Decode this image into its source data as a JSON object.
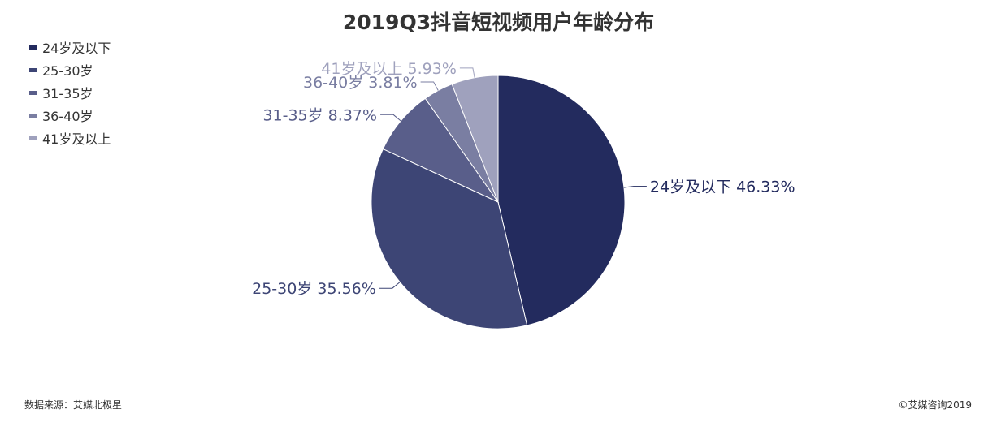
{
  "title": "2019Q3抖音短视频用户年龄分布",
  "source": "数据来源：艾媒北极星",
  "copyright": "©艾媒咨询2019",
  "chart_data": {
    "type": "pie",
    "title": "2019Q3抖音短视频用户年龄分布",
    "legend_position": "top-left",
    "slices": [
      {
        "name": "24岁及以下",
        "value": 46.33,
        "label": "24岁及以下 46.33%",
        "color": "#232b5e"
      },
      {
        "name": "25-30岁",
        "value": 35.56,
        "label": "25-30岁 35.56%",
        "color": "#3d4575"
      },
      {
        "name": "31-35岁",
        "value": 8.37,
        "label": "31-35岁 8.37%",
        "color": "#595e8a"
      },
      {
        "name": "36-40岁",
        "value": 3.81,
        "label": "36-40岁 3.81%",
        "color": "#7a7ea2"
      },
      {
        "name": "41岁及以上",
        "value": 5.93,
        "label": "41岁及以上 5.93%",
        "color": "#9fa1bd"
      }
    ]
  }
}
